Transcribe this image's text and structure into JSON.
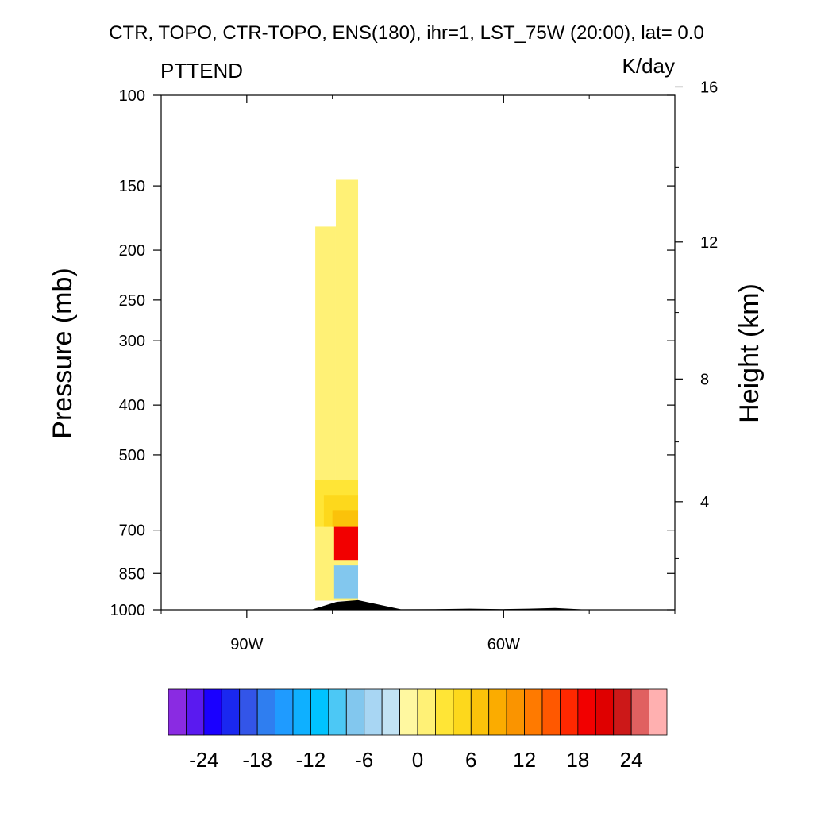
{
  "chart_data": {
    "type": "heatmap",
    "title": "CTR, TOPO, CTR-TOPO, ENS(180), ihr=1, LST_75W (20:00), lat=  0.0",
    "left_label": "PTTEND",
    "right_label": "K/day",
    "ylabel": "Pressure (mb)",
    "ylabel_right": "Height (km)",
    "xlabel": "",
    "x_axis": {
      "units": "degrees longitude",
      "range": [
        -100,
        -40
      ],
      "ticks": [
        -90,
        -60
      ],
      "tick_labels": [
        "90W",
        "60W"
      ]
    },
    "y_axis": {
      "scale": "log",
      "units": "mb",
      "range": [
        1000,
        100
      ],
      "ticks": [
        100,
        150,
        200,
        250,
        300,
        400,
        500,
        700,
        850,
        1000
      ],
      "tick_labels": [
        "100",
        "150",
        "200",
        "250",
        "300",
        "400",
        "500",
        "700",
        "850",
        "1000"
      ]
    },
    "y_axis_right": {
      "units": "km",
      "ticks": [
        4,
        8,
        12,
        16
      ],
      "tick_labels": [
        "4",
        "8",
        "12",
        "16"
      ]
    },
    "colorbar": {
      "colors": [
        "#8a2be2",
        "#5a1af0",
        "#1a00ff",
        "#1a28f0",
        "#3355e8",
        "#2f7ef0",
        "#1f9bff",
        "#0fb0ff",
        "#00c3ff",
        "#4cc8f5",
        "#82c7ee",
        "#a8d6f3",
        "#c2e3f4",
        "#fff8a0",
        "#fff176",
        "#ffe536",
        "#fdd81c",
        "#fbc20a",
        "#fbac00",
        "#fa9400",
        "#ff7a00",
        "#ff5800",
        "#ff2800",
        "#f20000",
        "#df0000",
        "#cc1818",
        "#e06060",
        "#ffb0b0"
      ],
      "tick_values": [
        -24,
        -18,
        -12,
        -6,
        0,
        6,
        12,
        18,
        24
      ],
      "tick_labels": [
        "-24",
        "-18",
        "-12",
        "-6",
        "0",
        "6",
        "12",
        "18",
        "24"
      ],
      "range": [
        -28,
        28
      ]
    },
    "field": [
      {
        "lon0": -82.0,
        "lon1": -79.6,
        "p_top": 180,
        "p_bot": 960,
        "value": 0.5
      },
      {
        "lon0": -79.6,
        "lon1": -77.0,
        "p_top": 146,
        "p_bot": 960,
        "value": 0.5
      },
      {
        "lon0": -82.0,
        "lon1": -77.0,
        "p_top": 560,
        "p_bot": 690,
        "value": 2
      },
      {
        "lon0": -81.0,
        "lon1": -77.0,
        "p_top": 600,
        "p_bot": 690,
        "value": 4
      },
      {
        "lon0": -80.0,
        "lon1": -77.0,
        "p_top": 640,
        "p_bot": 690,
        "value": 6
      },
      {
        "lon0": -79.8,
        "lon1": -77.0,
        "p_top": 690,
        "p_bot": 800,
        "value": 18
      },
      {
        "lon0": -79.8,
        "lon1": -77.0,
        "p_top": 820,
        "p_bot": 950,
        "value": -8
      }
    ],
    "terrain": {
      "color": "#000000",
      "lon": [
        -82.5,
        -79.5,
        -77.0,
        -72.0,
        -68.0,
        -64.0,
        -60.0,
        -57.0,
        -54.0,
        -50.0,
        -40.0
      ],
      "surface_pressure": [
        1000,
        965,
        958,
        998,
        997,
        995,
        997,
        995,
        992,
        1000,
        1000
      ]
    }
  }
}
